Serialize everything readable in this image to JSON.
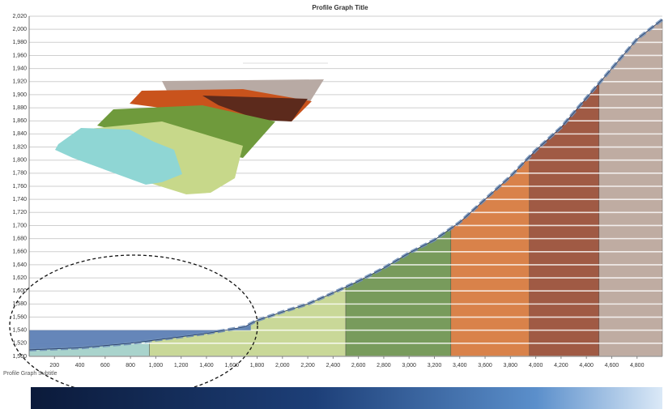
{
  "chart_data": {
    "type": "profile",
    "title": "Profile Graph Title",
    "subtitle": "Profile Graph Subtitle",
    "x": [
      0,
      400,
      800,
      1000,
      1400,
      1700,
      1800,
      2000,
      2200,
      2400,
      2600,
      2800,
      3000,
      3200,
      3400,
      3600,
      3800,
      4000,
      4200,
      4400,
      4600,
      4800,
      5000
    ],
    "values": [
      1510,
      1513,
      1520,
      1525,
      1535,
      1545,
      1555,
      1568,
      1580,
      1597,
      1615,
      1635,
      1658,
      1678,
      1705,
      1740,
      1775,
      1815,
      1850,
      1895,
      1940,
      1985,
      2015
    ],
    "color": "#6f8fb8",
    "zones": [
      {
        "from": 0,
        "to": 950,
        "color": "#a9d3cc"
      },
      {
        "from": 950,
        "to": 2500,
        "color": "#c9d898"
      },
      {
        "from": 2500,
        "to": 3330,
        "color": "#789b5c"
      },
      {
        "from": 3330,
        "to": 3950,
        "color": "#d9824a"
      },
      {
        "from": 3950,
        "to": 4500,
        "color": "#a05a44"
      },
      {
        "from": 4500,
        "to": 5000,
        "color": "#bfaca2"
      }
    ],
    "water": {
      "from": 0,
      "to": 1750,
      "level": 1540,
      "color": "#5d7fb5"
    },
    "xlim": [
      0,
      5000
    ],
    "xticks": [
      200,
      400,
      600,
      800,
      {
        "value": 1000,
        "label": "1,000"
      },
      {
        "value": 1200,
        "label": "1,200"
      },
      {
        "value": 1400,
        "label": "1,400"
      },
      {
        "value": 1600,
        "label": "1,600"
      },
      {
        "value": 1800,
        "label": "1,800"
      },
      {
        "value": 2000,
        "label": "2,000"
      },
      {
        "value": 2200,
        "label": "2,200"
      },
      {
        "value": 2400,
        "label": "2,400"
      },
      {
        "value": 2600,
        "label": "2,600"
      },
      {
        "value": 2800,
        "label": "2,800"
      },
      {
        "value": 3000,
        "label": "3,000"
      },
      {
        "value": 3200,
        "label": "3,200"
      },
      {
        "value": 3400,
        "label": "3,400"
      },
      {
        "value": 3600,
        "label": "3,600"
      },
      {
        "value": 3800,
        "label": "3,800"
      },
      {
        "value": 4000,
        "label": "4,000"
      },
      {
        "value": 4200,
        "label": "4,200"
      },
      {
        "value": 4400,
        "label": "4,400"
      },
      {
        "value": 4600,
        "label": "4,600"
      },
      {
        "value": 4800,
        "label": "4,800"
      }
    ],
    "ylim": [
      1500,
      2020
    ],
    "yticks": [
      {
        "value": 1500,
        "label": "1,500"
      },
      {
        "value": 1520,
        "label": "1,520"
      },
      {
        "value": 1540,
        "label": "1,540"
      },
      {
        "value": 1560,
        "label": "1,560"
      },
      {
        "value": 1580,
        "label": "1,580"
      },
      {
        "value": 1600,
        "label": "1,600"
      },
      {
        "value": 1620,
        "label": "1,620"
      },
      {
        "value": 1640,
        "label": "1,640"
      },
      {
        "value": 1660,
        "label": "1,660"
      },
      {
        "value": 1680,
        "label": "1,680"
      },
      {
        "value": 1700,
        "label": "1,700"
      },
      {
        "value": 1720,
        "label": "1,720"
      },
      {
        "value": 1740,
        "label": "1,740"
      },
      {
        "value": 1760,
        "label": "1,760"
      },
      {
        "value": 1780,
        "label": "1,780"
      },
      {
        "value": 1800,
        "label": "1,800"
      },
      {
        "value": 1820,
        "label": "1,820"
      },
      {
        "value": 1840,
        "label": "1,840"
      },
      {
        "value": 1860,
        "label": "1,860"
      },
      {
        "value": 1880,
        "label": "1,880"
      },
      {
        "value": 1900,
        "label": "1,900"
      },
      {
        "value": 1920,
        "label": "1,920"
      },
      {
        "value": 1940,
        "label": "1,940"
      },
      {
        "value": 1960,
        "label": "1,960"
      },
      {
        "value": 1980,
        "label": "1,980"
      },
      {
        "value": 2000,
        "label": "2,000"
      },
      {
        "value": 2020,
        "label": "2,020"
      }
    ],
    "grid": true
  }
}
